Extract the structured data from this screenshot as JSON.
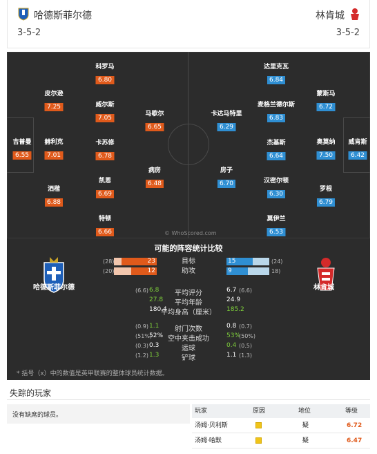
{
  "header": {
    "home": {
      "name": "哈德斯菲尔德",
      "formation": "3-5-2"
    },
    "away": {
      "name": "林肯城",
      "formation": "3-5-2"
    }
  },
  "colors": {
    "home": "#e05a1b",
    "away": "#2f8fd3",
    "pitch": "#2c2c2c",
    "better": "#7fd13b"
  },
  "pitch": {
    "watermark": "© WhoScored.com",
    "home_players": [
      {
        "name": "吉普曼",
        "rating": "6.55"
      },
      {
        "name": "皮尔逊",
        "rating": "7.25"
      },
      {
        "name": "赫利克",
        "rating": "7.01"
      },
      {
        "name": "洒楷",
        "rating": "6.88"
      },
      {
        "name": "科罗马",
        "rating": "6.80"
      },
      {
        "name": "威尔斯",
        "rating": "7.05"
      },
      {
        "name": "卡苏修",
        "rating": "6.78"
      },
      {
        "name": "凯恩",
        "rating": "6.69"
      },
      {
        "name": "特顿",
        "rating": "6.66"
      },
      {
        "name": "马歇尔",
        "rating": "6.65"
      },
      {
        "name": "病房",
        "rating": "6.48"
      }
    ],
    "away_players": [
      {
        "name": "威肯斯",
        "rating": "6.42"
      },
      {
        "name": "蒙斯马",
        "rating": "6.72"
      },
      {
        "name": "奥莫纳",
        "rating": "7.50"
      },
      {
        "name": "罗根",
        "rating": "6.79"
      },
      {
        "name": "达里克瓦",
        "rating": "6.84"
      },
      {
        "name": "麦格兰德尔斯",
        "rating": "6.83"
      },
      {
        "name": "杰基斯",
        "rating": "6.64"
      },
      {
        "name": "汉密尔顿",
        "rating": "6.30"
      },
      {
        "name": "莫伊兰",
        "rating": "6.53"
      },
      {
        "name": "卡达马特里",
        "rating": "6.29"
      },
      {
        "name": "房子",
        "rating": "6.70"
      }
    ]
  },
  "comparison": {
    "title": "可能的阵容统计比较",
    "home_team": "哈德斯菲尔德",
    "away_team": "林肯城",
    "bars": [
      {
        "label": "目标",
        "home": "23",
        "home_prev": "(28)",
        "home_frac": 0.82,
        "away": "15",
        "away_prev": "(24)",
        "away_frac": 0.62
      },
      {
        "label": "助攻",
        "home": "12",
        "home_prev": "(20)",
        "home_frac": 0.6,
        "away": "9",
        "away_prev": "18)",
        "away_frac": 0.5
      }
    ],
    "group1": [
      {
        "label": "平均评分",
        "home": "6.8",
        "home_prev": "(6.6)",
        "home_green": true,
        "away": "6.7",
        "away_prev": "(6.6)",
        "away_green": false
      },
      {
        "label": "平均年龄",
        "home": "27.8",
        "home_prev": "",
        "home_green": true,
        "away": "24.9",
        "away_prev": "",
        "away_green": false
      },
      {
        "label": "平均身高（厘米）",
        "home": "180.4",
        "home_prev": "",
        "home_green": false,
        "away": "185.2",
        "away_prev": "",
        "away_green": true
      }
    ],
    "group2": [
      {
        "label": "射门次数",
        "home": "1.1",
        "home_prev": "(0.9)",
        "home_green": true,
        "away": "0.8",
        "away_prev": "(0.7)",
        "away_green": false
      },
      {
        "label": "空中夹击成功",
        "home": "52%",
        "home_prev": "(51%)",
        "home_green": false,
        "away": "53%",
        "away_prev": "(50%)",
        "away_green": true
      },
      {
        "label": "运球",
        "home": "0.3",
        "home_prev": "(0.3)",
        "home_green": false,
        "away": "0.4",
        "away_prev": "(0.5)",
        "away_green": true
      },
      {
        "label": "铲球",
        "home": "1.3",
        "home_prev": "(1.2)",
        "home_green": true,
        "away": "1.1",
        "away_prev": "(1.3)",
        "away_green": false
      }
    ],
    "footnote": "* 括号（x）中的数值是英甲联赛的整体球员统计数据。"
  },
  "missing": {
    "title": "失踪的玩家",
    "none_text": "没有缺席的球员。",
    "headers": {
      "player": "玩家",
      "reason": "原因",
      "status": "地位",
      "rating": "等级"
    },
    "rows": [
      {
        "player": "汤姆·贝利斯",
        "reason_icon": "injury-icon",
        "status": "疑",
        "rating": "6.72"
      },
      {
        "player": "汤姆·哈默",
        "reason_icon": "injury-icon",
        "status": "疑",
        "rating": "6.47"
      }
    ]
  }
}
